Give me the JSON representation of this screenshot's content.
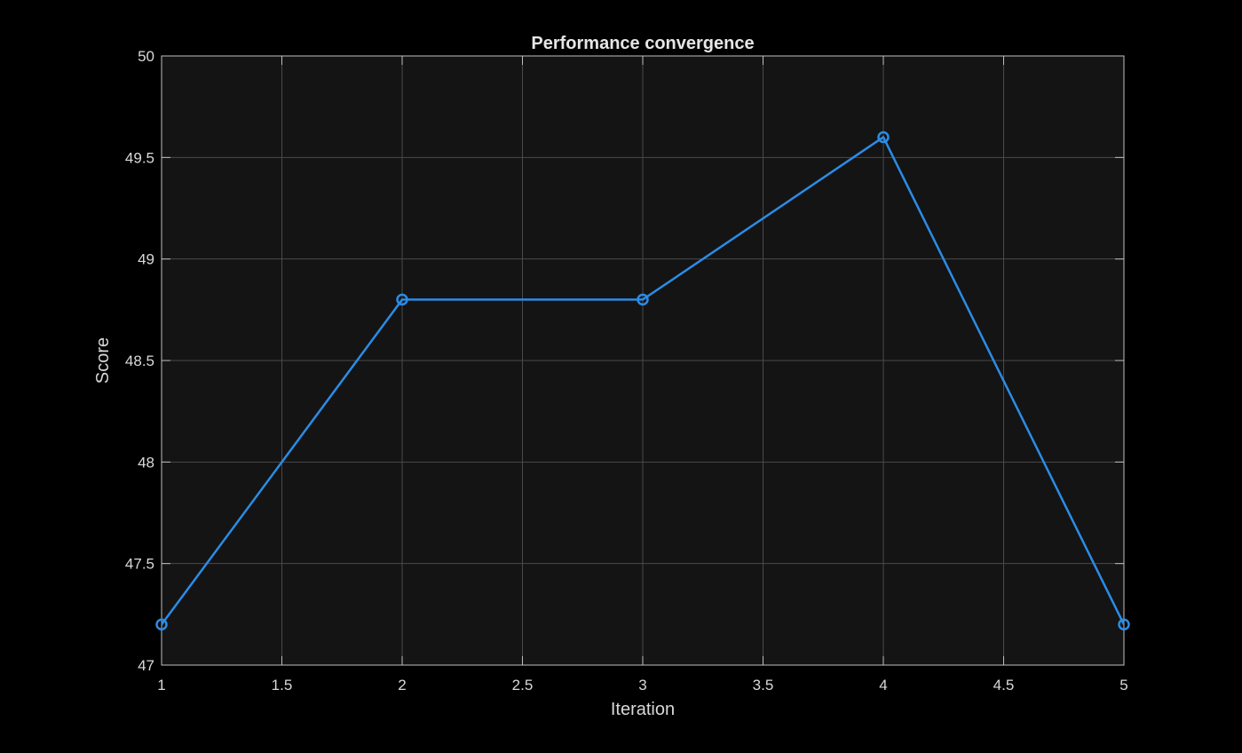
{
  "chart_data": {
    "type": "line",
    "title": "Performance convergence",
    "xlabel": "Iteration",
    "ylabel": "Score",
    "xlim": [
      1,
      5
    ],
    "ylim": [
      47,
      50
    ],
    "xticks": [
      1,
      1.5,
      2,
      2.5,
      3,
      3.5,
      4,
      4.5,
      5
    ],
    "xtick_labels": [
      "1",
      "1.5",
      "2",
      "2.5",
      "3",
      "3.5",
      "4",
      "4.5",
      "5"
    ],
    "yticks": [
      47,
      47.5,
      48,
      48.5,
      49,
      49.5,
      50
    ],
    "ytick_labels": [
      "47",
      "47.5",
      "48",
      "48.5",
      "49",
      "49.5",
      "50"
    ],
    "grid": true,
    "series": [
      {
        "x": [
          1,
          2,
          3,
          4,
          5
        ],
        "y": [
          47.2,
          48.8,
          48.8,
          49.6,
          47.2
        ],
        "color": "#2b8ce6",
        "marker": "circle"
      }
    ]
  },
  "colors": {
    "background": "#000000",
    "plot_area": "#141414",
    "grid": "#4a4a4a",
    "axes": "#bfbfbf",
    "text": "#d9d9d9"
  }
}
